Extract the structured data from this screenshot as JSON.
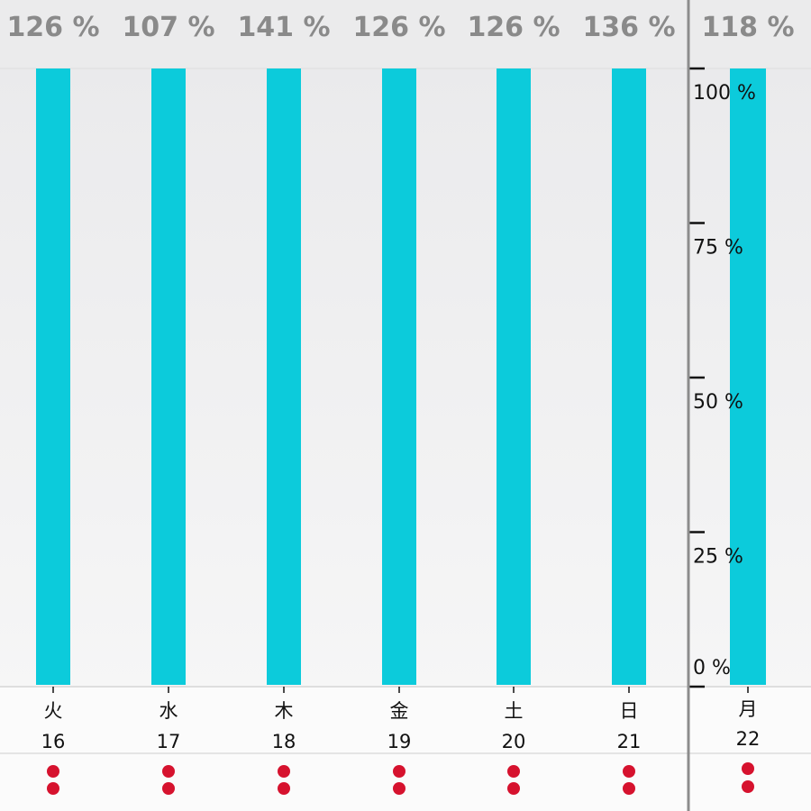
{
  "colors": {
    "bar": "#0ccbdb",
    "marker": "#d6122e",
    "percent_text": "#8a8a8a",
    "divider": "#8c8c8c"
  },
  "chart_data": {
    "type": "bar",
    "categories": [
      {
        "weekday": "火",
        "day": "16"
      },
      {
        "weekday": "水",
        "day": "17"
      },
      {
        "weekday": "木",
        "day": "18"
      },
      {
        "weekday": "金",
        "day": "19"
      },
      {
        "weekday": "土",
        "day": "20"
      },
      {
        "weekday": "日",
        "day": "21"
      },
      {
        "weekday": "月",
        "day": "22"
      }
    ],
    "values": [
      126,
      107,
      141,
      126,
      126,
      136,
      118
    ],
    "value_labels": [
      "126 %",
      "107 %",
      "141 %",
      "126 %",
      "126 %",
      "136 %",
      "118 %"
    ],
    "ylim": [
      0,
      100
    ],
    "yticks": [
      {
        "value": 100,
        "label": "100 %"
      },
      {
        "value": 75,
        "label": "75 %"
      },
      {
        "value": 50,
        "label": "50 %"
      },
      {
        "value": 25,
        "label": "25 %"
      },
      {
        "value": 0,
        "label": "0 %"
      }
    ],
    "markers_per_day": 2
  }
}
